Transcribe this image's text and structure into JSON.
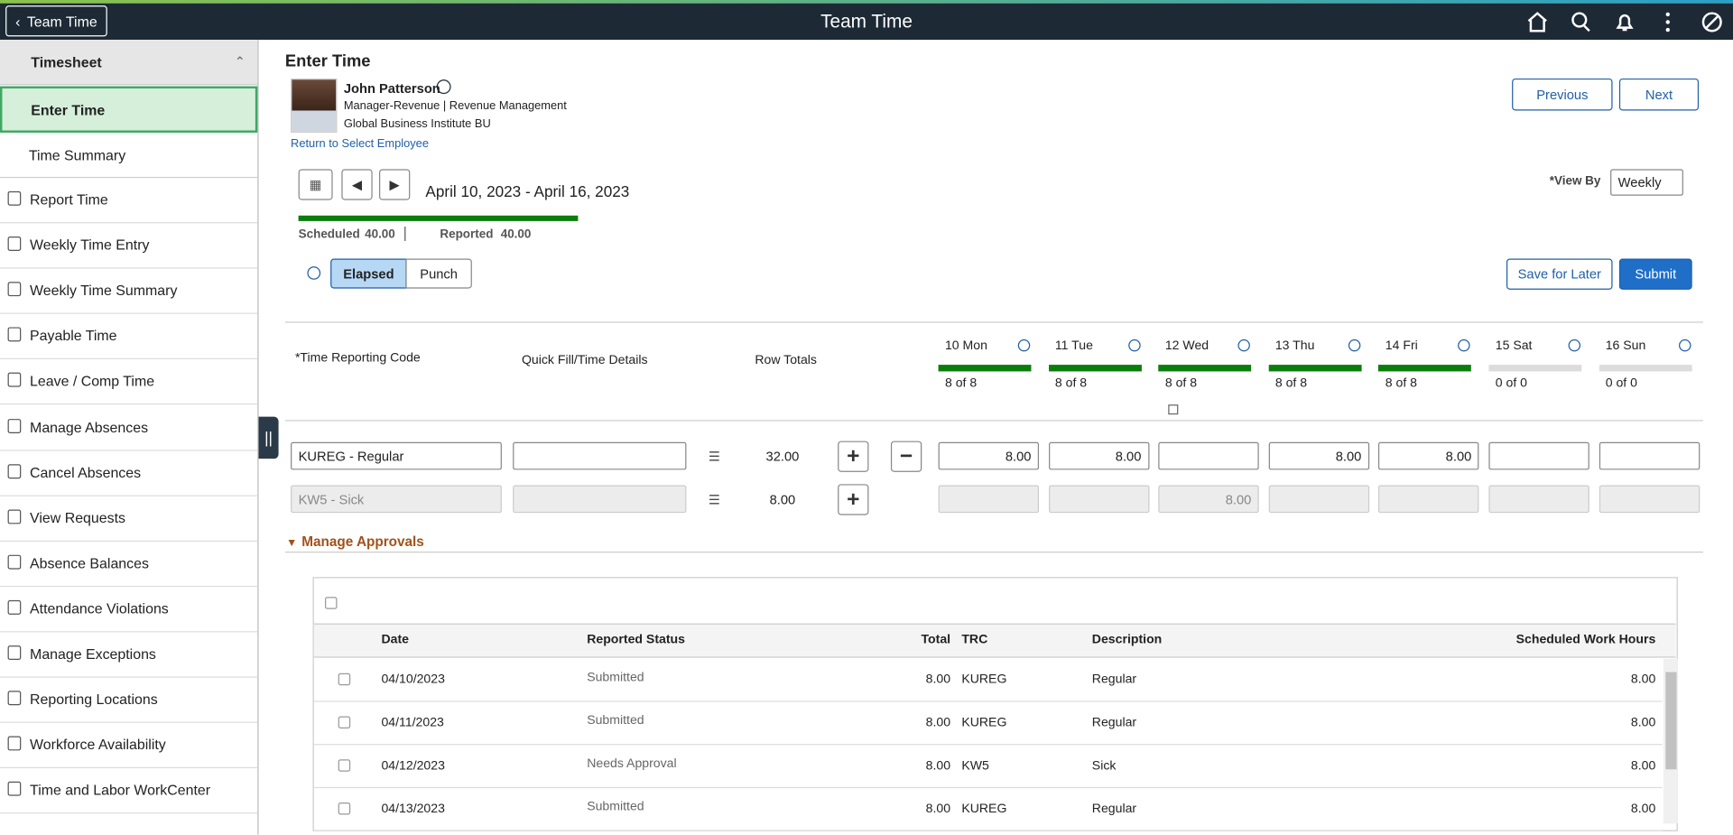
{
  "header": {
    "back": "Team Time",
    "title": "Team Time"
  },
  "sidebar": {
    "section": "Timesheet",
    "sub_items": [
      "Enter Time",
      "Time Summary"
    ],
    "items": [
      "Report Time",
      "Weekly Time Entry",
      "Weekly Time Summary",
      "Payable Time",
      "Leave / Comp Time",
      "Manage Absences",
      "Cancel Absences",
      "View Requests",
      "Absence Balances",
      "Attendance Violations",
      "Manage Exceptions",
      "Reporting Locations",
      "Workforce Availability",
      "Time and Labor WorkCenter"
    ]
  },
  "page": {
    "title": "Enter Time",
    "employee": {
      "name": "John Patterson",
      "role": "Manager-Revenue | Revenue Management",
      "org": "Global Business Institute BU"
    },
    "return_link": "Return to Select Employee",
    "previous": "Previous",
    "next": "Next",
    "date_range": "April 10, 2023 - April 16, 2023",
    "view_by_label": "*View By",
    "view_by": "Weekly",
    "scheduled_label": "Scheduled",
    "scheduled": "40.00",
    "reported_label": "Reported",
    "reported": "40.00",
    "modes": [
      "Elapsed",
      "Punch"
    ],
    "save": "Save for Later",
    "submit": "Submit"
  },
  "grid": {
    "headers": [
      "*Time Reporting Code",
      "Quick Fill/Time Details",
      "Row Totals"
    ],
    "days": [
      {
        "label": "10 Mon",
        "summary": "8 of 8",
        "bar_color": "#0b7d0b"
      },
      {
        "label": "11 Tue",
        "summary": "8 of 8",
        "bar_color": "#0b7d0b"
      },
      {
        "label": "12 Wed",
        "summary": "8 of 8",
        "bar_color": "#0b7d0b"
      },
      {
        "label": "13 Thu",
        "summary": "8 of 8",
        "bar_color": "#0b7d0b"
      },
      {
        "label": "14 Fri",
        "summary": "8 of 8",
        "bar_color": "#0b7d0b"
      },
      {
        "label": "15 Sat",
        "summary": "0 of 0",
        "bar_color": "#dcdcdc"
      },
      {
        "label": "16 Sun",
        "summary": "0 of 0",
        "bar_color": "#dcdcdc"
      }
    ],
    "rows": [
      {
        "trc": "KUREG - Regular",
        "total": "32.00",
        "hours": [
          "8.00",
          "8.00",
          null,
          "8.00",
          "8.00",
          null,
          null
        ],
        "disabled": false
      },
      {
        "trc": "KW5 - Sick",
        "total": "8.00",
        "hours": [
          null,
          null,
          "8.00",
          null,
          null,
          null,
          null
        ],
        "disabled": true
      }
    ]
  },
  "approvals": {
    "title": "Manage Approvals",
    "columns": [
      "Date",
      "Reported Status",
      "Total",
      "TRC",
      "Description",
      "Scheduled Work Hours"
    ],
    "rows": [
      [
        "04/10/2023",
        "Submitted",
        "8.00",
        "KUREG",
        "Regular",
        "8.00"
      ],
      [
        "04/11/2023",
        "Submitted",
        "8.00",
        "KUREG",
        "Regular",
        "8.00"
      ],
      [
        "04/12/2023",
        "Needs Approval",
        "8.00",
        "KW5",
        "Sick",
        "8.00"
      ],
      [
        "04/13/2023",
        "Submitted",
        "8.00",
        "KUREG",
        "Regular",
        "8.00"
      ]
    ]
  }
}
